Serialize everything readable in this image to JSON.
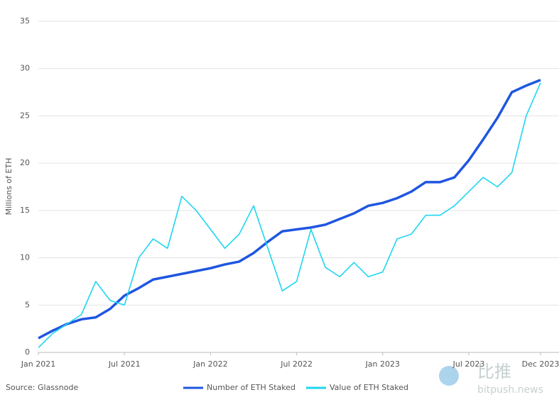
{
  "chart_data": {
    "type": "line",
    "y_label": "Millions of ETH",
    "source": "Source: Glassnode",
    "watermark": {
      "logo_text": "比推",
      "site": "bitpush.news"
    },
    "x": [
      "2021-01",
      "2021-02",
      "2021-03",
      "2021-04",
      "2021-05",
      "2021-06",
      "2021-07",
      "2021-08",
      "2021-09",
      "2021-10",
      "2021-11",
      "2021-12",
      "2022-01",
      "2022-02",
      "2022-03",
      "2022-04",
      "2022-05",
      "2022-06",
      "2022-07",
      "2022-08",
      "2022-09",
      "2022-10",
      "2022-11",
      "2022-12",
      "2023-01",
      "2023-02",
      "2023-03",
      "2023-04",
      "2023-05",
      "2023-06",
      "2023-07",
      "2023-08",
      "2023-09",
      "2023-10",
      "2023-11",
      "2023-12"
    ],
    "xticks": [
      {
        "value": "2021-01",
        "label": "Jan 2021"
      },
      {
        "value": "2021-07",
        "label": "Jul 2021"
      },
      {
        "value": "2022-01",
        "label": "Jan 2022"
      },
      {
        "value": "2022-07",
        "label": "Jul 2022"
      },
      {
        "value": "2023-01",
        "label": "Jan 2023"
      },
      {
        "value": "2023-07",
        "label": "Jul 2023"
      },
      {
        "value": "2023-12",
        "label": "Dec 2023"
      }
    ],
    "ylim": [
      0,
      35
    ],
    "yticks": [
      0,
      5,
      10,
      15,
      20,
      25,
      30,
      35
    ],
    "grid": true,
    "series": [
      {
        "name": "Number of ETH Staked",
        "color": "#1f56e0",
        "width": 3.5,
        "values": [
          1.5,
          2.3,
          3.0,
          3.5,
          3.7,
          4.6,
          6.0,
          6.8,
          7.7,
          8.0,
          8.3,
          8.6,
          8.9,
          9.3,
          9.6,
          10.5,
          11.7,
          12.8,
          13.0,
          13.2,
          13.5,
          14.1,
          14.7,
          15.5,
          15.8,
          16.3,
          17.0,
          18.0,
          18.0,
          18.5,
          20.3,
          22.5,
          24.8,
          27.5,
          28.2,
          28.8
        ]
      },
      {
        "name": "Value of ETH Staked",
        "color": "#1fd6f0",
        "width": 1.6,
        "values": [
          0.5,
          2.0,
          3.0,
          4.0,
          7.5,
          5.5,
          5.0,
          10.0,
          12.0,
          11.0,
          16.5,
          15.0,
          13.0,
          11.0,
          12.5,
          15.5,
          11.0,
          6.5,
          7.5,
          13.0,
          9.0,
          8.0,
          9.5,
          8.0,
          8.5,
          12.0,
          12.5,
          14.5,
          14.5,
          15.5,
          17.0,
          18.5,
          17.5,
          19.0,
          25.0,
          28.5
        ]
      }
    ]
  }
}
